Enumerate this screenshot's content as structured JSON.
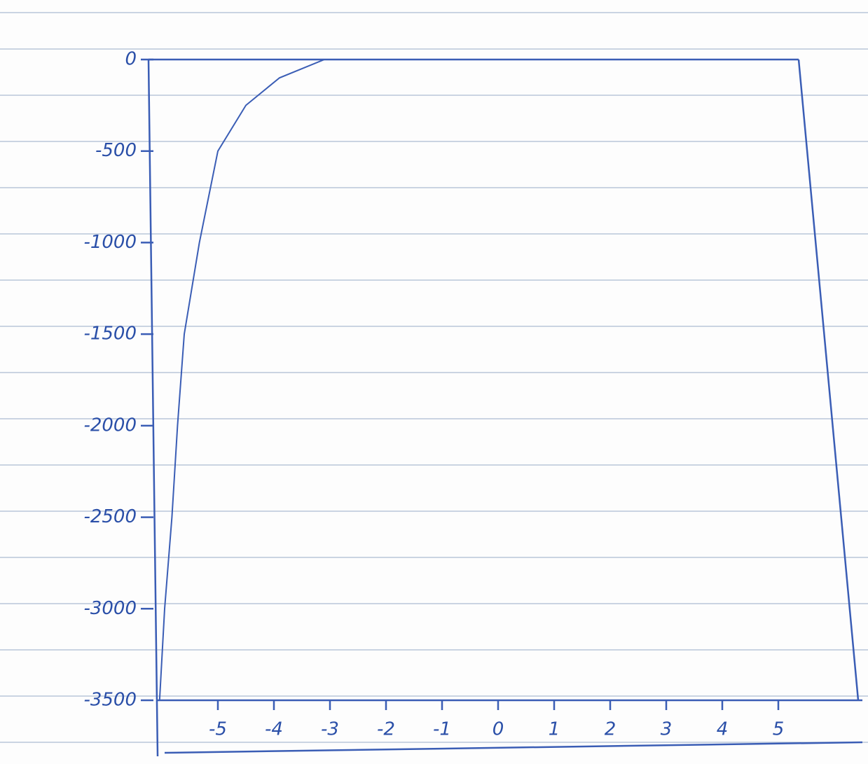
{
  "chart_data": {
    "type": "line",
    "x": [
      -6.04,
      -5.95,
      -5.82,
      -5.72,
      -5.6,
      -5.33,
      -5.0,
      -4.5,
      -3.9,
      -3.1,
      -2.2
    ],
    "values": [
      -3500,
      -3000,
      -2500,
      -2000,
      -1500,
      -1000,
      -500,
      -250,
      -100,
      0,
      0
    ],
    "color": "#3a5db5",
    "xlim": [
      -6.2,
      6.5
    ],
    "xticks": [
      -5,
      -4,
      -3,
      -2,
      -1,
      0,
      1,
      2,
      3,
      4,
      5
    ],
    "ylim": [
      -3500,
      0
    ],
    "yticks": [
      0,
      -500,
      -1000,
      -1500,
      -2000,
      -2500,
      -3000,
      -3500
    ]
  }
}
